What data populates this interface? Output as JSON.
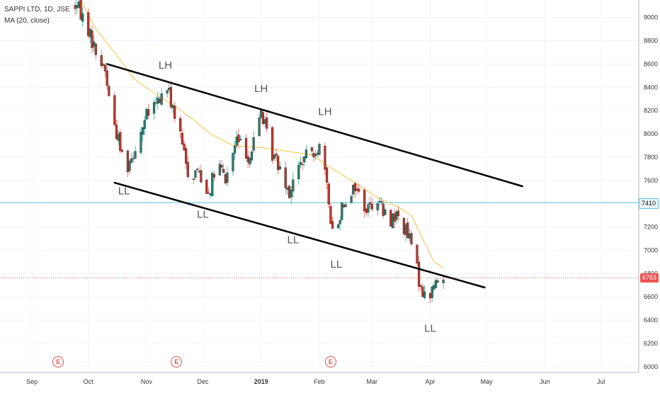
{
  "header": {
    "symbol_line": "SAPPI LTD, 1D, JSE",
    "indicator_line": "MA (20, close)"
  },
  "colors": {
    "up": "#26a69a",
    "up_fill": "#2a7f6f",
    "down": "#ef5350",
    "down_fill": "#c0392b",
    "ma": "#f5c242",
    "channel": "#000000",
    "hline_7410": "#5bc0de",
    "last_price": "#ef5350",
    "event_badge": "#e34f4f"
  },
  "chart_data": {
    "type": "candlestick",
    "ylim": [
      5950,
      9150
    ],
    "y_ticks": [
      "9000",
      "8800",
      "8600",
      "8400",
      "8200",
      "8000",
      "7800",
      "7600",
      "7400",
      "7200",
      "7000",
      "6800",
      "6600",
      "6400",
      "6200",
      "6000"
    ],
    "x_ticks": [
      {
        "label": "Sep",
        "date": "2018-09-01"
      },
      {
        "label": "Oct",
        "date": "2018-10-01"
      },
      {
        "label": "Nov",
        "date": "2018-11-01"
      },
      {
        "label": "Dec",
        "date": "2018-12-01"
      },
      {
        "label": "2019",
        "date": "2019-01-01",
        "bold": true
      },
      {
        "label": "Feb",
        "date": "2019-02-01"
      },
      {
        "label": "Mar",
        "date": "2019-03-01"
      },
      {
        "label": "Apr",
        "date": "2019-04-01"
      },
      {
        "label": "May",
        "date": "2019-05-01"
      },
      {
        "label": "Jun",
        "date": "2019-06-01"
      },
      {
        "label": "Jul",
        "date": "2019-07-01"
      }
    ],
    "xlim": [
      "2018-08-15",
      "2019-07-21"
    ],
    "ma": [
      [
        "2018-09-27",
        9150
      ],
      [
        "2018-10-05",
        8900
      ],
      [
        "2018-10-15",
        8700
      ],
      [
        "2018-10-25",
        8480
      ],
      [
        "2018-11-05",
        8350
      ],
      [
        "2018-11-15",
        8250
      ],
      [
        "2018-11-26",
        8120
      ],
      [
        "2018-12-05",
        8000
      ],
      [
        "2018-12-17",
        7900
      ],
      [
        "2019-01-02",
        7880
      ],
      [
        "2019-01-15",
        7850
      ],
      [
        "2019-01-28",
        7820
      ],
      [
        "2019-02-08",
        7700
      ],
      [
        "2019-02-20",
        7580
      ],
      [
        "2019-03-04",
        7450
      ],
      [
        "2019-03-14",
        7380
      ],
      [
        "2019-03-22",
        7300
      ],
      [
        "2019-03-28",
        7100
      ],
      [
        "2019-04-03",
        6900
      ],
      [
        "2019-04-08",
        6850
      ]
    ],
    "price_lines": [
      {
        "value": 7410,
        "label": "7410",
        "style": "solid"
      },
      {
        "value": 6763,
        "label": "6763",
        "style": "dotted"
      }
    ],
    "trendlines": [
      {
        "name": "upper-channel",
        "from": [
          "2018-10-11",
          8600
        ],
        "to": [
          "2019-05-20",
          7550
        ]
      },
      {
        "name": "lower-channel",
        "from": [
          "2018-10-15",
          7580
        ],
        "to": [
          "2019-04-30",
          6680
        ]
      }
    ],
    "annotations": [
      {
        "text": "LH",
        "date": "2018-11-11",
        "value": 8560
      },
      {
        "text": "LH",
        "date": "2019-01-01",
        "value": 8360
      },
      {
        "text": "LH",
        "date": "2019-02-04",
        "value": 8160
      },
      {
        "text": "LL",
        "date": "2018-10-20",
        "value": 7480
      },
      {
        "text": "LL",
        "date": "2018-12-01",
        "value": 7280
      },
      {
        "text": "LL",
        "date": "2019-01-18",
        "value": 7060
      },
      {
        "text": "LL",
        "date": "2019-02-10",
        "value": 6850
      },
      {
        "text": "LL",
        "date": "2019-04-01",
        "value": 6300
      }
    ],
    "events": [
      {
        "label": "E",
        "date": "2018-09-15"
      },
      {
        "label": "E",
        "date": "2018-11-17"
      },
      {
        "label": "E",
        "date": "2019-02-07"
      }
    ]
  }
}
